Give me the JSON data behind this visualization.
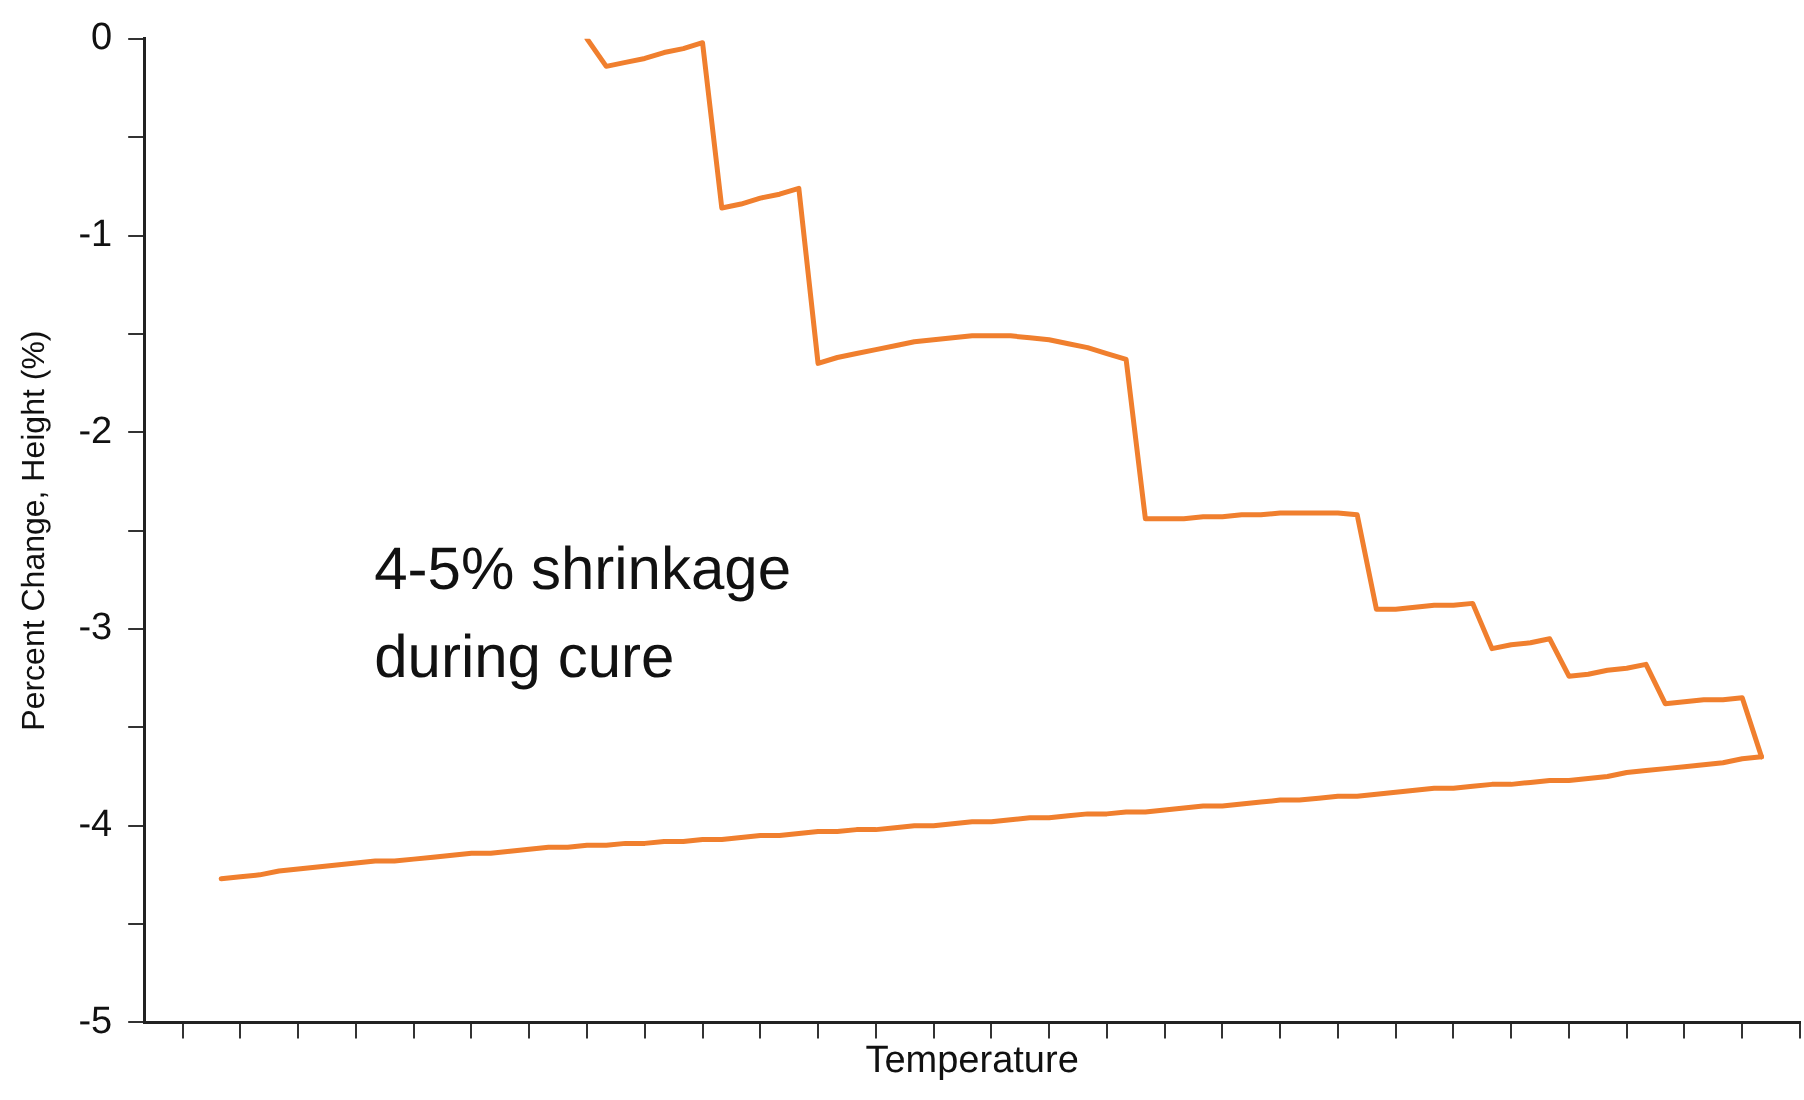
{
  "chart_data": {
    "type": "line",
    "xlabel": "Temperature",
    "ylabel": "Percent Change, Height (%)",
    "categories": [
      null,
      null,
      null,
      null,
      null,
      null,
      null,
      null,
      null,
      null,
      null,
      null,
      null,
      null,
      null,
      null,
      null,
      null,
      null,
      null,
      null,
      null,
      null,
      null,
      null,
      null,
      null,
      null,
      null,
      null,
      null,
      null,
      null,
      null,
      null,
      null,
      null,
      null,
      null,
      null,
      null,
      null,
      null,
      null,
      null,
      null,
      null,
      null,
      null,
      null,
      null,
      null,
      null,
      null,
      null,
      null,
      null,
      null,
      null,
      null,
      null,
      null,
      null,
      null,
      null,
      null,
      null,
      null,
      null,
      null,
      null,
      null,
      null,
      null,
      null,
      null,
      null,
      null,
      null,
      null,
      null,
      null,
      null,
      null,
      null,
      null,
      null
    ],
    "series": [
      {
        "color": "#f07f2e",
        "values": [
          null,
          null,
          null,
          null,
          null,
          null,
          null,
          null,
          null,
          null,
          null,
          null,
          null,
          null,
          null,
          null,
          null,
          null,
          null,
          null,
          null,
          null,
          null,
          0,
          -0.14,
          -0.12,
          -0.1,
          -0.07,
          -0.05,
          -0.02,
          -0.86,
          -0.84,
          -0.81,
          -0.79,
          -0.76,
          -1.65,
          -1.62,
          -1.6,
          -1.58,
          -1.56,
          -1.54,
          -1.53,
          -1.52,
          -1.51,
          -1.51,
          -1.51,
          -1.52,
          -1.53,
          -1.55,
          -1.57,
          -1.6,
          -1.63,
          -2.44,
          -2.44,
          -2.44,
          -2.43,
          -2.43,
          -2.42,
          -2.42,
          -2.41,
          -2.41,
          -2.41,
          -2.41,
          -2.42,
          -2.9,
          -2.9,
          -2.89,
          -2.88,
          -2.88,
          -2.87,
          -3.1,
          -3.08,
          -3.07,
          -3.05,
          -3.24,
          -3.23,
          -3.21,
          -3.2,
          -3.18,
          -3.38,
          -3.37,
          -3.36,
          -3.36,
          -3.35,
          -3.65,
          null,
          null
        ]
      },
      {
        "color": "#f07f2e",
        "values": [
          null,
          null,
          null,
          null,
          -4.27,
          -4.26,
          -4.25,
          -4.23,
          -4.22,
          -4.21,
          -4.2,
          -4.19,
          -4.18,
          -4.18,
          -4.17,
          -4.16,
          -4.15,
          -4.14,
          -4.14,
          -4.13,
          -4.12,
          -4.11,
          -4.11,
          -4.1,
          -4.1,
          -4.09,
          -4.09,
          -4.08,
          -4.08,
          -4.07,
          -4.07,
          -4.06,
          -4.05,
          -4.05,
          -4.04,
          -4.03,
          -4.03,
          -4.02,
          -4.02,
          -4.01,
          -4.0,
          -4.0,
          -3.99,
          -3.98,
          -3.98,
          -3.97,
          -3.96,
          -3.96,
          -3.95,
          -3.94,
          -3.94,
          -3.93,
          -3.93,
          -3.92,
          -3.91,
          -3.9,
          -3.9,
          -3.89,
          -3.88,
          -3.87,
          -3.87,
          -3.86,
          -3.85,
          -3.85,
          -3.84,
          -3.83,
          -3.82,
          -3.81,
          -3.81,
          -3.8,
          -3.79,
          -3.79,
          -3.78,
          -3.77,
          -3.77,
          -3.76,
          -3.75,
          -3.73,
          -3.72,
          -3.71,
          -3.7,
          -3.69,
          -3.68,
          -3.66,
          -3.65,
          null,
          null
        ]
      }
    ],
    "ylim": [
      -5,
      0
    ],
    "yticks": [
      -5,
      {
        "value": -4.5,
        "label": null
      },
      -4,
      {
        "value": -3.5,
        "label": null
      },
      -3,
      {
        "value": -2.5,
        "label": null
      },
      -2,
      {
        "value": -1.5,
        "label": null
      },
      -1,
      {
        "value": -0.5,
        "label": null
      },
      0
    ],
    "tick_labels": "y",
    "grid": false,
    "legend": false,
    "marker": "none",
    "line_style": "solid",
    "annotations": [
      "4-5% shrinkage\nduring cure"
    ]
  }
}
